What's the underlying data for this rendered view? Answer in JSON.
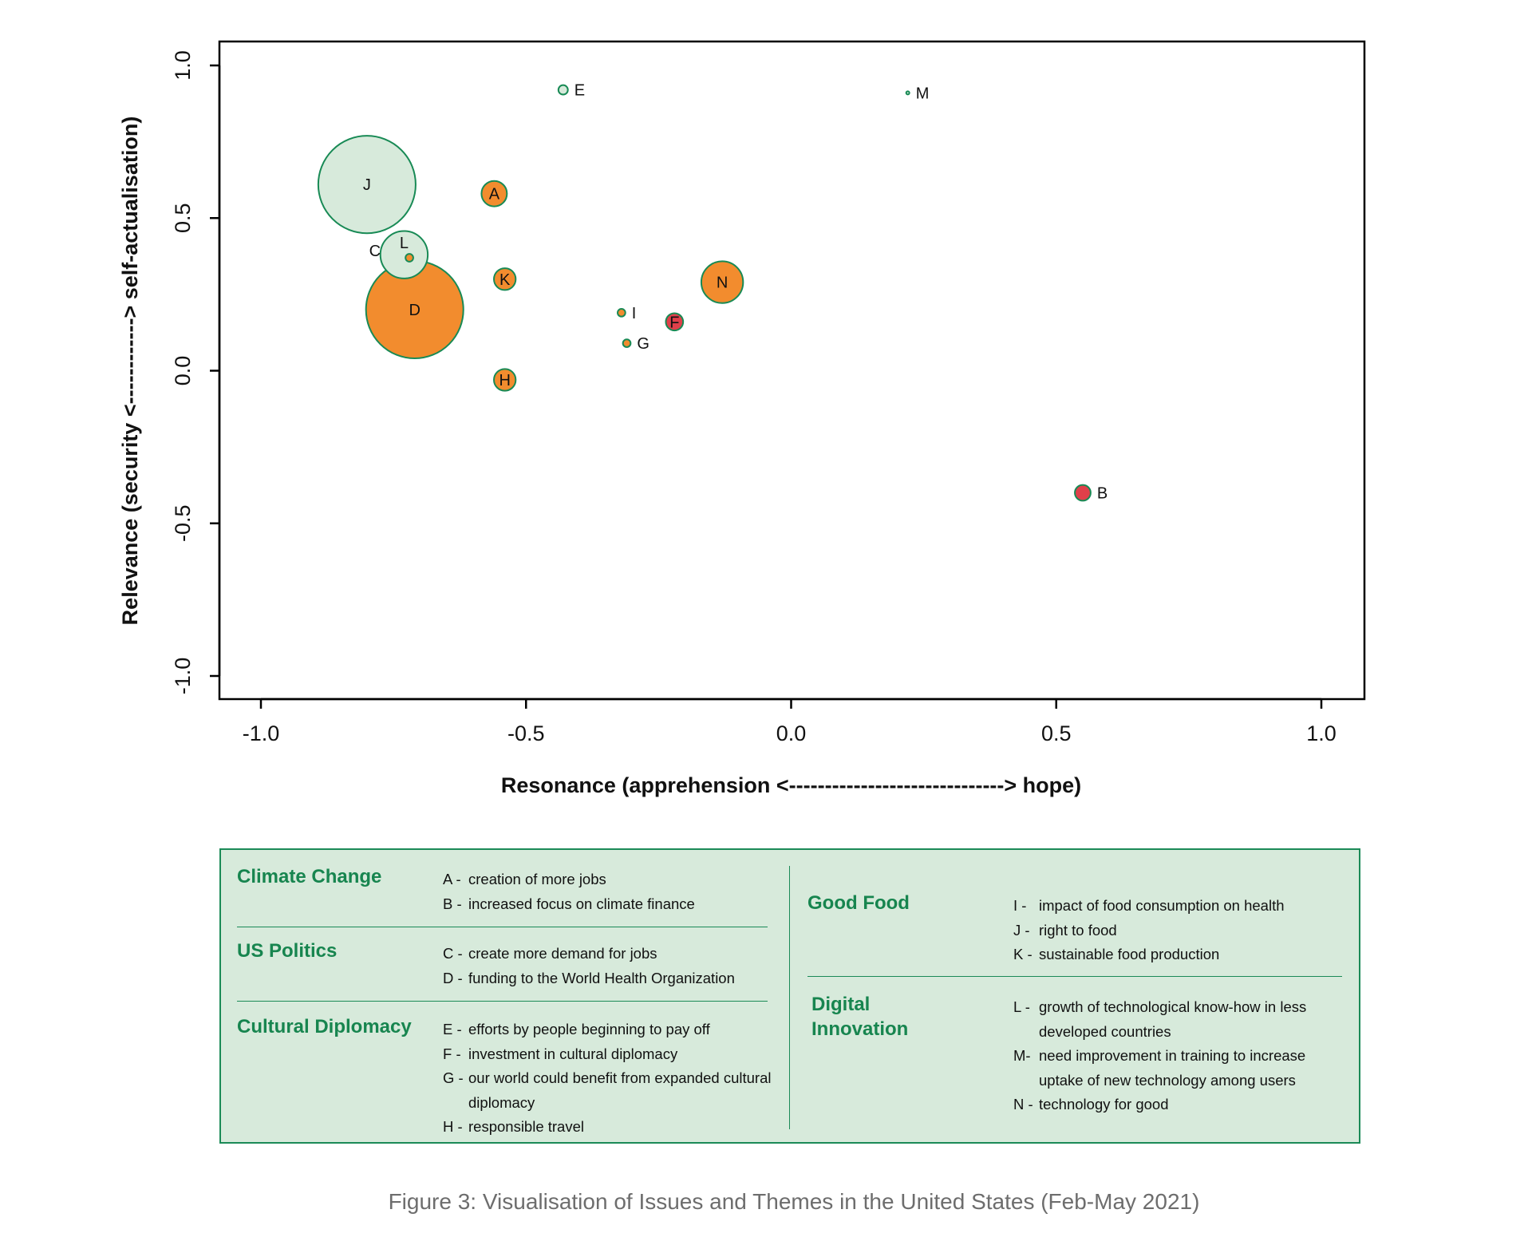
{
  "chart_data": {
    "type": "scatter",
    "xlabel": "Resonance (apprehension <------------------------------> hope)",
    "ylabel": "Relevance (security <------------> self-actualisation)",
    "xlim": [
      -1.08,
      1.08
    ],
    "ylim": [
      -1.08,
      1.08
    ],
    "xticks": [
      "-1.0",
      "-0.5",
      "0.0",
      "0.5",
      "1.0"
    ],
    "yticks": [
      "-1.0",
      "-0.5",
      "0.0",
      "0.5",
      "1.0"
    ],
    "grid": false,
    "colors": {
      "light": "#d7eadb",
      "orange": "#f28c2e",
      "red": "#e0404a",
      "stroke": "#188a55"
    },
    "points": [
      {
        "label": "A",
        "x": -0.56,
        "y": 0.58,
        "size": 1.3,
        "color": "orange"
      },
      {
        "label": "B",
        "x": 0.55,
        "y": -0.4,
        "size": 0.5,
        "color": "red"
      },
      {
        "label": "C",
        "x": -0.72,
        "y": 0.37,
        "size": 0.12,
        "color": "orange"
      },
      {
        "label": "D",
        "x": -0.71,
        "y": 0.2,
        "size": 19,
        "color": "orange"
      },
      {
        "label": "E",
        "x": -0.43,
        "y": 0.92,
        "size": 0.18,
        "color": "light"
      },
      {
        "label": "F",
        "x": -0.22,
        "y": 0.16,
        "size": 0.6,
        "color": "red"
      },
      {
        "label": "G",
        "x": -0.31,
        "y": 0.09,
        "size": 0.12,
        "color": "orange"
      },
      {
        "label": "H",
        "x": -0.54,
        "y": -0.03,
        "size": 0.95,
        "color": "orange"
      },
      {
        "label": "I",
        "x": -0.32,
        "y": 0.19,
        "size": 0.12,
        "color": "orange"
      },
      {
        "label": "J",
        "x": -0.8,
        "y": 0.61,
        "size": 19,
        "color": "light"
      },
      {
        "label": "K",
        "x": -0.54,
        "y": 0.3,
        "size": 0.95,
        "color": "orange"
      },
      {
        "label": "L",
        "x": -0.73,
        "y": 0.38,
        "size": 4.5,
        "color": "light"
      },
      {
        "label": "M",
        "x": 0.22,
        "y": 0.91,
        "size": 0.01,
        "color": "light"
      },
      {
        "label": "N",
        "x": -0.13,
        "y": 0.29,
        "size": 3.5,
        "color": "orange"
      }
    ]
  },
  "legend": {
    "climate": {
      "title": "Climate Change",
      "items": [
        {
          "code": "A -",
          "text": "creation of more jobs"
        },
        {
          "code": "B -",
          "text": "increased focus on climate finance"
        }
      ]
    },
    "politics": {
      "title": "US Politics",
      "items": [
        {
          "code": "C -",
          "text": "create more demand for jobs"
        },
        {
          "code": "D -",
          "text": "funding to the World Health Organization"
        }
      ]
    },
    "cultural": {
      "title": "Cultural Diplomacy",
      "items": [
        {
          "code": "E -",
          "text": "efforts by people beginning to pay off"
        },
        {
          "code": "F -",
          "text": "investment in cultural diplomacy"
        },
        {
          "code": "G -",
          "text": "our world could benefit from expanded cultural diplomacy"
        },
        {
          "code": "H -",
          "text": "responsible travel"
        }
      ]
    },
    "food": {
      "title": "Good Food",
      "items": [
        {
          "code": "I  -",
          "text": "impact of food consumption on health"
        },
        {
          "code": "J -",
          "text": "right to food"
        },
        {
          "code": "K -",
          "text": "sustainable food production"
        }
      ]
    },
    "digital": {
      "title": "Digital Innovation",
      "items": [
        {
          "code": "L -",
          "text": "growth of technological know-how in less developed countries"
        },
        {
          "code": "M-",
          "text": "need improvement in training to increase uptake of new technology among users"
        },
        {
          "code": "N -",
          "text": "technology for good"
        }
      ]
    }
  },
  "caption": "Figure 3: Visualisation of Issues and Themes in the United States (Feb-May 2021)"
}
